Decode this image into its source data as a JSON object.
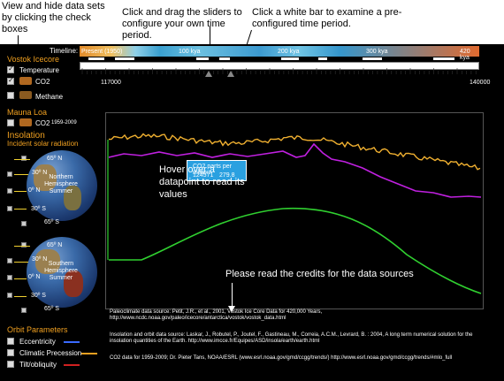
{
  "annotations": {
    "left": "View and hide data sets by clicking the check boxes",
    "middle": "Click and drag the sliders to configure your own time period.",
    "right": "Click a white bar to examine a pre-configured time period.",
    "hover": "Hover over a datapoint to read its values",
    "credits_note": "Please read the credits for the data sources"
  },
  "timeline": {
    "label": "Timeline:",
    "ticks": [
      "Present (1950)",
      "100 kya",
      "200 kya",
      "300 kya",
      "420 kya"
    ],
    "range_start": "117000",
    "range_end": "140000"
  },
  "vostok": {
    "heading": "Vostok Icecore",
    "items": [
      {
        "label": "Temperature",
        "checked": true
      },
      {
        "label": "CO2",
        "checked": true
      },
      {
        "label": "Methane",
        "checked": false
      }
    ]
  },
  "mauna_loa": {
    "heading": "Mauna Loa",
    "items": [
      {
        "label": "CO2",
        "suffix": "1959-2009",
        "checked": false
      }
    ]
  },
  "insolation": {
    "heading": "Insolation",
    "subheading": "Incident solar radiation",
    "north_globe": {
      "caption": "Northern Hemisphere Summer",
      "latitudes": [
        "65º N",
        "30º N",
        "0º N",
        "30º S",
        "65º S"
      ]
    },
    "south_globe": {
      "caption": "Southern Hemisphere Summer",
      "latitudes": [
        "65º N",
        "30º N",
        "0º N",
        "30º S",
        "65º S"
      ]
    }
  },
  "orbit": {
    "heading": "Orbit Parameters",
    "items": [
      {
        "label": "Eccentricity",
        "color": "#3a6aff"
      },
      {
        "label": "Climatic Precession",
        "color": "#f0a020"
      },
      {
        "label": "Tilt/obliquity",
        "color": "#d02020"
      }
    ]
  },
  "tooltip": {
    "title": "CO2 parts per million",
    "x": "124571",
    "y": "279.8"
  },
  "credits": [
    "Paleoclimate data source: Petit, J.R., et al., 2001, Vostok Ice Core Data for 420,000 Years, http://www.ncdc.noaa.gov/paleo/icecore/antarctica/vostok/vostok_data.html",
    "Insolation and orbit data source: Laskar, J., Robutel, P., Joutel, F., Gastineau, M., Correia, A.C.M., Levrard, B. : 2004, A long term numerical solution for the insolation quantities of the Earth. http://www.imcce.fr/Equipes/ASD/insola/earth/earth.html",
    "CO2 data for 1959-2009; Dr. Pieter Tans, NOAA/ESRL (www.esrl.noaa.gov/gmd/ccgg/trends/) http://www.esrl.noaa.gov/gmd/ccgg/trends/#mlo_full"
  ],
  "colors": {
    "temperature": "#f0b030",
    "co2": "#c020e0",
    "insolation": "#30d030",
    "accent": "#f0a020"
  }
}
